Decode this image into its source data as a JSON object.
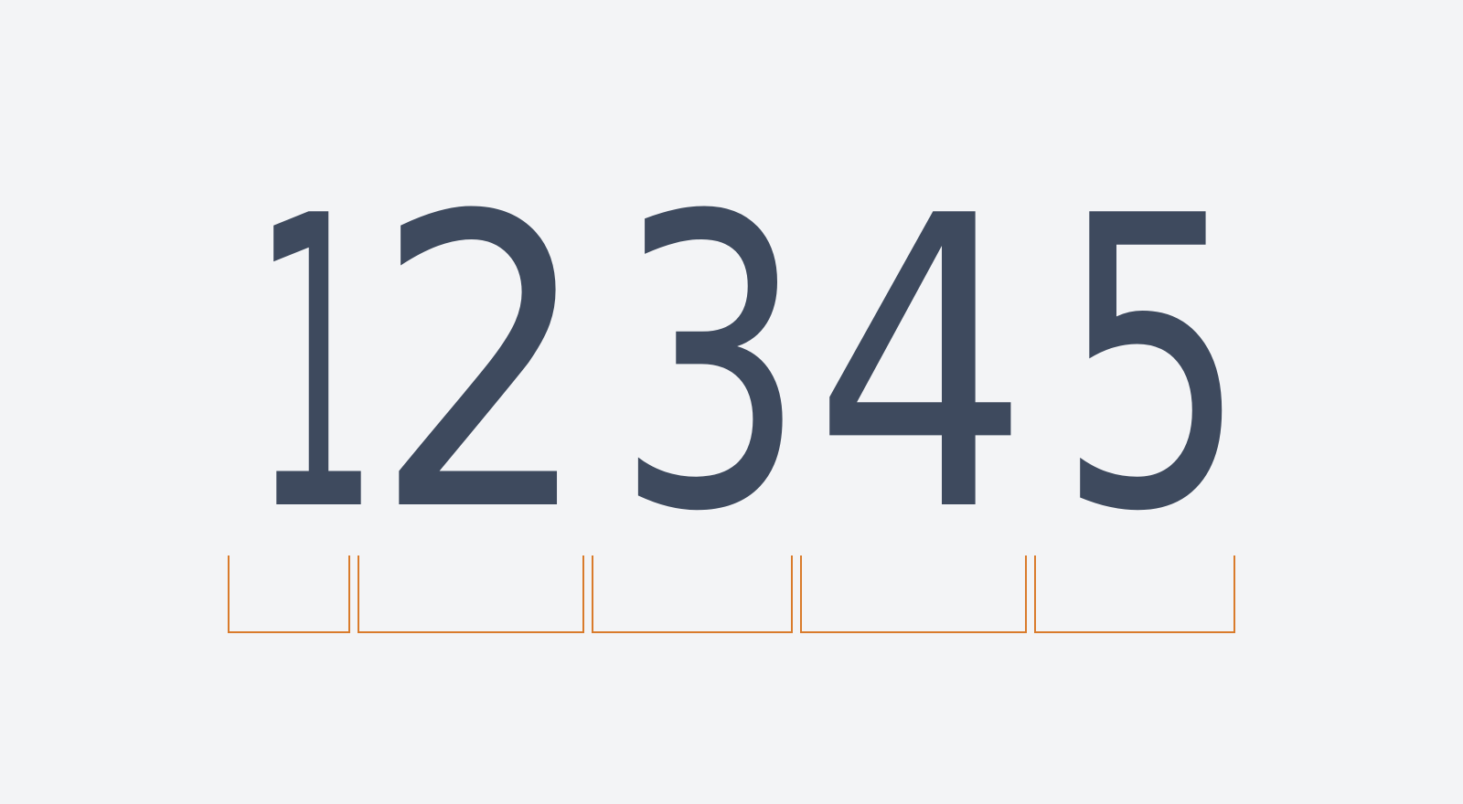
{
  "digits": [
    "1",
    "2",
    "3",
    "4",
    "5"
  ],
  "colors": {
    "background": "#f3f4f6",
    "digit": "#3e4a5e",
    "bracket": "#d97b2b"
  }
}
